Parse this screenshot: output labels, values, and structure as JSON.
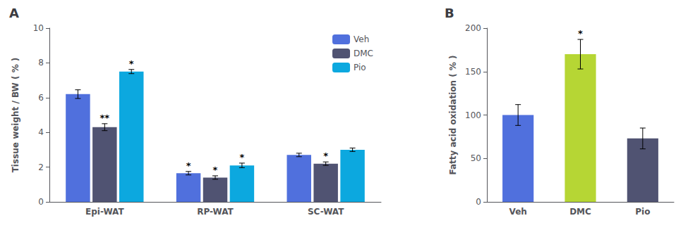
{
  "chart_data": [
    {
      "type": "bar",
      "title": "A",
      "categories": [
        "Epi-WAT",
        "RP-WAT",
        "SC-WAT"
      ],
      "series": [
        {
          "name": "Veh",
          "values": [
            6.2,
            1.65,
            2.7
          ],
          "errors": [
            0.25,
            0.1,
            0.1
          ],
          "annotations": [
            null,
            "*",
            null
          ]
        },
        {
          "name": "DMC",
          "values": [
            4.3,
            1.4,
            2.2
          ],
          "errors": [
            0.2,
            0.1,
            0.1
          ],
          "annotations": [
            "**",
            "*",
            "*"
          ]
        },
        {
          "name": "Pio",
          "values": [
            7.5,
            2.1,
            3.0
          ],
          "errors": [
            0.12,
            0.13,
            0.1
          ],
          "annotations": [
            "*",
            "*",
            null
          ]
        }
      ],
      "ylabel": "Tissue weight / BW ( % )",
      "ylim": [
        0,
        10
      ],
      "yticks": [
        0,
        2,
        4,
        6,
        8,
        10
      ],
      "grid": false,
      "legend": "upper right"
    },
    {
      "type": "bar",
      "title": "B",
      "categories": [
        "Veh",
        "DMC",
        "Pio"
      ],
      "values": [
        100,
        170,
        73
      ],
      "errors": [
        12,
        17,
        12
      ],
      "annotations": [
        null,
        "*",
        null
      ],
      "ylabel": "Fatty acid oxidation ( % )",
      "ylim": [
        0,
        200
      ],
      "yticks": [
        0,
        50,
        100,
        150,
        200
      ],
      "grid": false
    }
  ]
}
